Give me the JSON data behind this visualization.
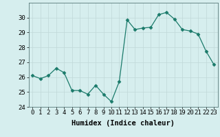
{
  "x": [
    0,
    1,
    2,
    3,
    4,
    5,
    6,
    7,
    8,
    9,
    10,
    11,
    12,
    13,
    14,
    15,
    16,
    17,
    18,
    19,
    20,
    21,
    22,
    23
  ],
  "y": [
    26.1,
    25.9,
    26.1,
    26.6,
    26.3,
    25.1,
    25.1,
    24.85,
    25.45,
    24.85,
    24.35,
    25.7,
    29.85,
    29.2,
    29.3,
    29.35,
    30.2,
    30.35,
    29.9,
    29.2,
    29.1,
    28.9,
    27.75,
    26.85
  ],
  "line_color": "#1a7a6a",
  "marker": "D",
  "marker_size": 2.5,
  "bg_color": "#d6eeee",
  "grid_color": "#c0d8d8",
  "xlabel": "Humidex (Indice chaleur)",
  "ylim": [
    24,
    31
  ],
  "xlim": [
    -0.5,
    23.5
  ],
  "yticks": [
    24,
    25,
    26,
    27,
    28,
    29,
    30
  ],
  "xticks": [
    0,
    1,
    2,
    3,
    4,
    5,
    6,
    7,
    8,
    9,
    10,
    11,
    12,
    13,
    14,
    15,
    16,
    17,
    18,
    19,
    20,
    21,
    22,
    23
  ],
  "label_fontsize": 7.5,
  "tick_fontsize": 6.5
}
